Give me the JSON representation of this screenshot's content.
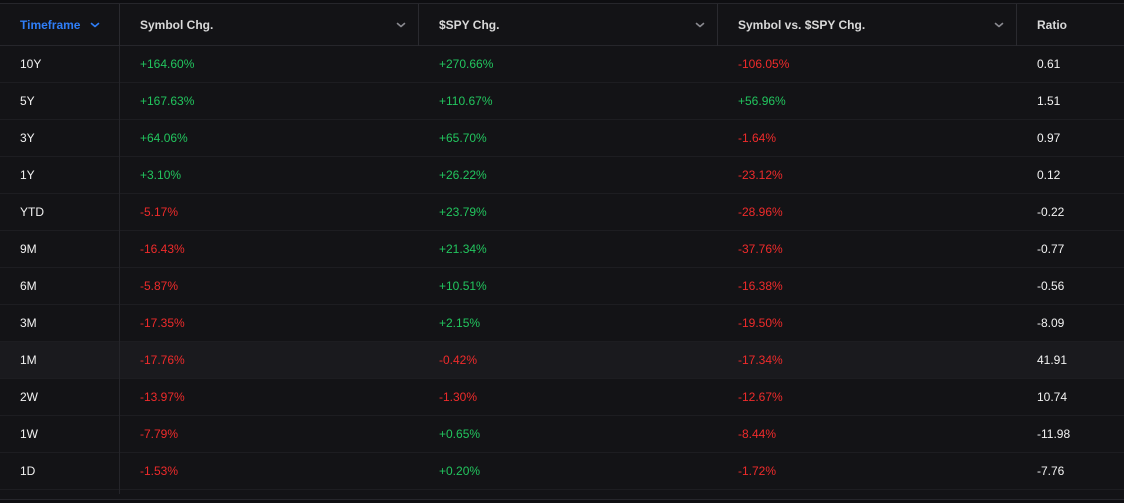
{
  "columns": {
    "timeframe": "Timeframe",
    "symbol_chg": "Symbol Chg.",
    "spy_chg": "$SPY Chg.",
    "vs_chg": "Symbol vs. $SPY Chg.",
    "ratio": "Ratio"
  },
  "colors": {
    "positive": "#22c55e",
    "negative": "#ef2b2b",
    "accent": "#2f7ef7",
    "background": "#131316"
  },
  "rows": [
    {
      "timeframe": "10Y",
      "symbol_chg": "+164.60%",
      "spy_chg": "+270.66%",
      "vs_chg": "-106.05%",
      "ratio": "0.61"
    },
    {
      "timeframe": "5Y",
      "symbol_chg": "+167.63%",
      "spy_chg": "+110.67%",
      "vs_chg": "+56.96%",
      "ratio": "1.51"
    },
    {
      "timeframe": "3Y",
      "symbol_chg": "+64.06%",
      "spy_chg": "+65.70%",
      "vs_chg": "-1.64%",
      "ratio": "0.97"
    },
    {
      "timeframe": "1Y",
      "symbol_chg": "+3.10%",
      "spy_chg": "+26.22%",
      "vs_chg": "-23.12%",
      "ratio": "0.12"
    },
    {
      "timeframe": "YTD",
      "symbol_chg": "-5.17%",
      "spy_chg": "+23.79%",
      "vs_chg": "-28.96%",
      "ratio": "-0.22"
    },
    {
      "timeframe": "9M",
      "symbol_chg": "-16.43%",
      "spy_chg": "+21.34%",
      "vs_chg": "-37.76%",
      "ratio": "-0.77"
    },
    {
      "timeframe": "6M",
      "symbol_chg": "-5.87%",
      "spy_chg": "+10.51%",
      "vs_chg": "-16.38%",
      "ratio": "-0.56"
    },
    {
      "timeframe": "3M",
      "symbol_chg": "-17.35%",
      "spy_chg": "+2.15%",
      "vs_chg": "-19.50%",
      "ratio": "-8.09"
    },
    {
      "timeframe": "1M",
      "symbol_chg": "-17.76%",
      "spy_chg": "-0.42%",
      "vs_chg": "-17.34%",
      "ratio": "41.91"
    },
    {
      "timeframe": "2W",
      "symbol_chg": "-13.97%",
      "spy_chg": "-1.30%",
      "vs_chg": "-12.67%",
      "ratio": "10.74"
    },
    {
      "timeframe": "1W",
      "symbol_chg": "-7.79%",
      "spy_chg": "+0.65%",
      "vs_chg": "-8.44%",
      "ratio": "-11.98"
    },
    {
      "timeframe": "1D",
      "symbol_chg": "-1.53%",
      "spy_chg": "+0.20%",
      "vs_chg": "-1.72%",
      "ratio": "-7.76"
    }
  ],
  "highlighted_row": "1M",
  "icons": {
    "sort_chevron": "chevron-down-icon"
  }
}
